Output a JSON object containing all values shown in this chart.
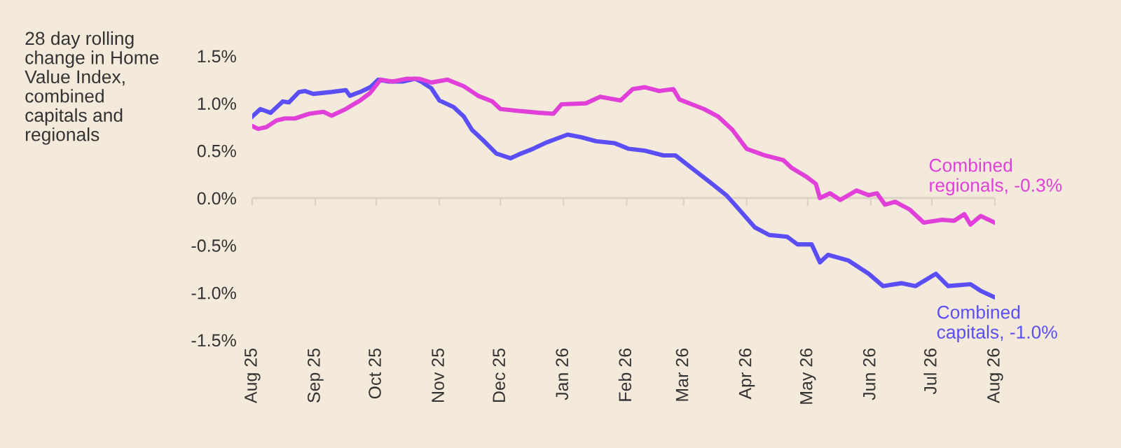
{
  "chart_data": {
    "type": "line",
    "ylabel": "28 day rolling\nchange in Home\nValue Index,\ncombined\ncapitals and\nregionals",
    "xlim": [
      "2025-08-01",
      "2026-08-01"
    ],
    "xticks": [
      {
        "value": "2025-08-01",
        "label": "Aug 25"
      },
      {
        "value": "2025-09-01",
        "label": "Sep 25"
      },
      {
        "value": "2025-10-01",
        "label": "Oct 25"
      },
      {
        "value": "2025-11-01",
        "label": "Nov 25"
      },
      {
        "value": "2025-12-01",
        "label": "Dec 25"
      },
      {
        "value": "2026-01-01",
        "label": "Jan 26"
      },
      {
        "value": "2026-02-01",
        "label": "Feb 26"
      },
      {
        "value": "2026-03-01",
        "label": "Mar 26"
      },
      {
        "value": "2026-04-01",
        "label": "Apr 26"
      },
      {
        "value": "2026-05-01",
        "label": "May 26"
      },
      {
        "value": "2026-06-01",
        "label": "Jun 26"
      },
      {
        "value": "2026-07-01",
        "label": "Jul 26"
      },
      {
        "value": "2026-08-01",
        "label": "Aug 26"
      }
    ],
    "ylim": [
      -1.5,
      1.5
    ],
    "yticks": [
      {
        "value": -1.5,
        "label": "-1.5%"
      },
      {
        "value": -1.0,
        "label": "-1.0%"
      },
      {
        "value": -0.5,
        "label": "-0.5%"
      },
      {
        "value": 0,
        "label": "0.0%"
      },
      {
        "value": 0.5,
        "label": "0.5%"
      },
      {
        "value": 1.0,
        "label": "1.0%"
      },
      {
        "value": 1.5,
        "label": "1.5%"
      }
    ],
    "ref_lines": [
      {
        "axis": "y",
        "value": 0,
        "color": "#dcd3c4",
        "line_style": "solid"
      }
    ],
    "grid": false,
    "legend": false,
    "marker": "none",
    "line_style": "solid",
    "series": [
      {
        "name": "Combined capitals, -1.0%",
        "color": "#5b4ef5",
        "x": [
          "2025-08-01",
          "2025-08-05",
          "2025-08-10",
          "2025-08-16",
          "2025-08-19",
          "2025-08-24",
          "2025-08-27",
          "2025-08-31",
          "2025-09-09",
          "2025-09-16",
          "2025-09-18",
          "2025-09-23",
          "2025-09-28",
          "2025-10-02",
          "2025-10-07",
          "2025-10-14",
          "2025-10-20",
          "2025-10-23",
          "2025-10-28",
          "2025-11-01",
          "2025-11-08",
          "2025-11-13",
          "2025-11-17",
          "2025-11-22",
          "2025-11-29",
          "2025-12-06",
          "2025-12-10",
          "2025-12-17",
          "2025-12-24",
          "2026-01-03",
          "2026-01-10",
          "2026-01-17",
          "2026-01-26",
          "2026-02-02",
          "2026-02-10",
          "2026-02-19",
          "2026-02-25",
          "2026-03-06",
          "2026-03-15",
          "2026-03-22",
          "2026-03-27",
          "2026-04-05",
          "2026-04-12",
          "2026-04-21",
          "2026-04-26",
          "2026-05-03",
          "2026-05-07",
          "2026-05-11",
          "2026-05-21",
          "2026-05-31",
          "2026-06-07",
          "2026-06-16",
          "2026-06-23",
          "2026-07-03",
          "2026-07-09",
          "2026-07-20",
          "2026-07-25",
          "2026-08-01"
        ],
        "values": [
          0.86,
          0.94,
          0.9,
          1.02,
          1.01,
          1.12,
          1.13,
          1.1,
          1.12,
          1.14,
          1.08,
          1.12,
          1.17,
          1.25,
          1.23,
          1.23,
          1.26,
          1.23,
          1.16,
          1.03,
          0.96,
          0.86,
          0.72,
          0.62,
          0.47,
          0.42,
          0.46,
          0.52,
          0.59,
          0.67,
          0.64,
          0.6,
          0.58,
          0.52,
          0.5,
          0.45,
          0.45,
          0.3,
          0.15,
          0.03,
          -0.09,
          -0.31,
          -0.39,
          -0.41,
          -0.49,
          -0.49,
          -0.68,
          -0.6,
          -0.66,
          -0.8,
          -0.93,
          -0.9,
          -0.93,
          -0.8,
          -0.93,
          -0.91,
          -0.98,
          -1.05
        ]
      },
      {
        "name": "Combined regionals, -0.3%",
        "color": "#e040d8",
        "x": [
          "2025-08-01",
          "2025-08-04",
          "2025-08-08",
          "2025-08-13",
          "2025-08-17",
          "2025-08-22",
          "2025-08-29",
          "2025-09-05",
          "2025-09-09",
          "2025-09-16",
          "2025-09-23",
          "2025-09-28",
          "2025-10-03",
          "2025-10-09",
          "2025-10-16",
          "2025-10-22",
          "2025-10-28",
          "2025-11-05",
          "2025-11-13",
          "2025-11-20",
          "2025-11-27",
          "2025-12-01",
          "2025-12-10",
          "2025-12-20",
          "2025-12-27",
          "2025-12-31",
          "2026-01-12",
          "2026-01-19",
          "2026-01-29",
          "2026-02-04",
          "2026-02-10",
          "2026-02-17",
          "2026-02-24",
          "2026-02-27",
          "2026-03-11",
          "2026-03-18",
          "2026-03-25",
          "2026-04-01",
          "2026-04-10",
          "2026-04-19",
          "2026-04-23",
          "2026-04-30",
          "2026-05-05",
          "2026-05-07",
          "2026-05-12",
          "2026-05-17",
          "2026-05-25",
          "2026-05-31",
          "2026-06-04",
          "2026-06-08",
          "2026-06-13",
          "2026-06-20",
          "2026-06-27",
          "2026-07-06",
          "2026-07-12",
          "2026-07-17",
          "2026-07-20",
          "2026-07-25",
          "2026-08-01"
        ],
        "values": [
          0.76,
          0.73,
          0.75,
          0.82,
          0.84,
          0.84,
          0.89,
          0.91,
          0.87,
          0.94,
          1.03,
          1.11,
          1.25,
          1.23,
          1.26,
          1.26,
          1.22,
          1.25,
          1.18,
          1.08,
          1.02,
          0.94,
          0.92,
          0.9,
          0.89,
          0.99,
          1.0,
          1.07,
          1.03,
          1.15,
          1.17,
          1.13,
          1.15,
          1.04,
          0.94,
          0.86,
          0.72,
          0.52,
          0.45,
          0.4,
          0.32,
          0.23,
          0.15,
          0.0,
          0.05,
          -0.02,
          0.08,
          0.03,
          0.05,
          -0.07,
          -0.04,
          -0.12,
          -0.26,
          -0.23,
          -0.24,
          -0.17,
          -0.28,
          -0.19,
          -0.26
        ]
      }
    ]
  }
}
